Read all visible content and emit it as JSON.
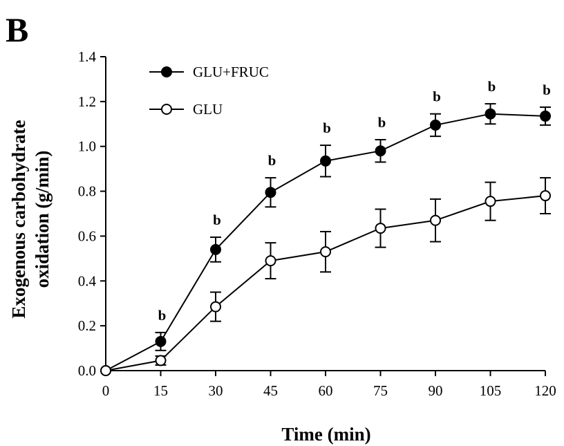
{
  "panel_label": "B",
  "chart_data": {
    "type": "line",
    "title": "",
    "xlabel": "Time (min)",
    "ylabel_lines": [
      "Exogenous carbohydrate",
      "oxidation (g/min)"
    ],
    "x": [
      0,
      15,
      30,
      45,
      60,
      75,
      90,
      105,
      120
    ],
    "xticks": [
      "0",
      "15",
      "30",
      "45",
      "60",
      "75",
      "90",
      "105",
      "120"
    ],
    "yticks": [
      "0.0",
      "0.2",
      "0.4",
      "0.6",
      "0.8",
      "1.0",
      "1.2",
      "1.4"
    ],
    "ylim": [
      0,
      1.4
    ],
    "xlim": [
      0,
      120
    ],
    "grid": false,
    "legend_position": "top-left",
    "series": [
      {
        "name": "GLU+FRUC",
        "marker": "filled-circle",
        "color": "#000000",
        "values": [
          0.0,
          0.13,
          0.54,
          0.795,
          0.935,
          0.98,
          1.095,
          1.145,
          1.135
        ],
        "errors": [
          0.0,
          0.04,
          0.055,
          0.065,
          0.07,
          0.05,
          0.05,
          0.045,
          0.04
        ]
      },
      {
        "name": "GLU",
        "marker": "open-circle",
        "color": "#000000",
        "values": [
          0.0,
          0.045,
          0.285,
          0.49,
          0.53,
          0.635,
          0.67,
          0.755,
          0.78
        ],
        "errors": [
          0.0,
          0.02,
          0.065,
          0.08,
          0.09,
          0.085,
          0.095,
          0.085,
          0.08
        ]
      }
    ],
    "annotations": [
      {
        "text": "b",
        "x": 15
      },
      {
        "text": "b",
        "x": 30
      },
      {
        "text": "b",
        "x": 45
      },
      {
        "text": "b",
        "x": 60
      },
      {
        "text": "b",
        "x": 75
      },
      {
        "text": "b",
        "x": 90
      },
      {
        "text": "b",
        "x": 105
      },
      {
        "text": "b",
        "x": 120
      }
    ]
  }
}
